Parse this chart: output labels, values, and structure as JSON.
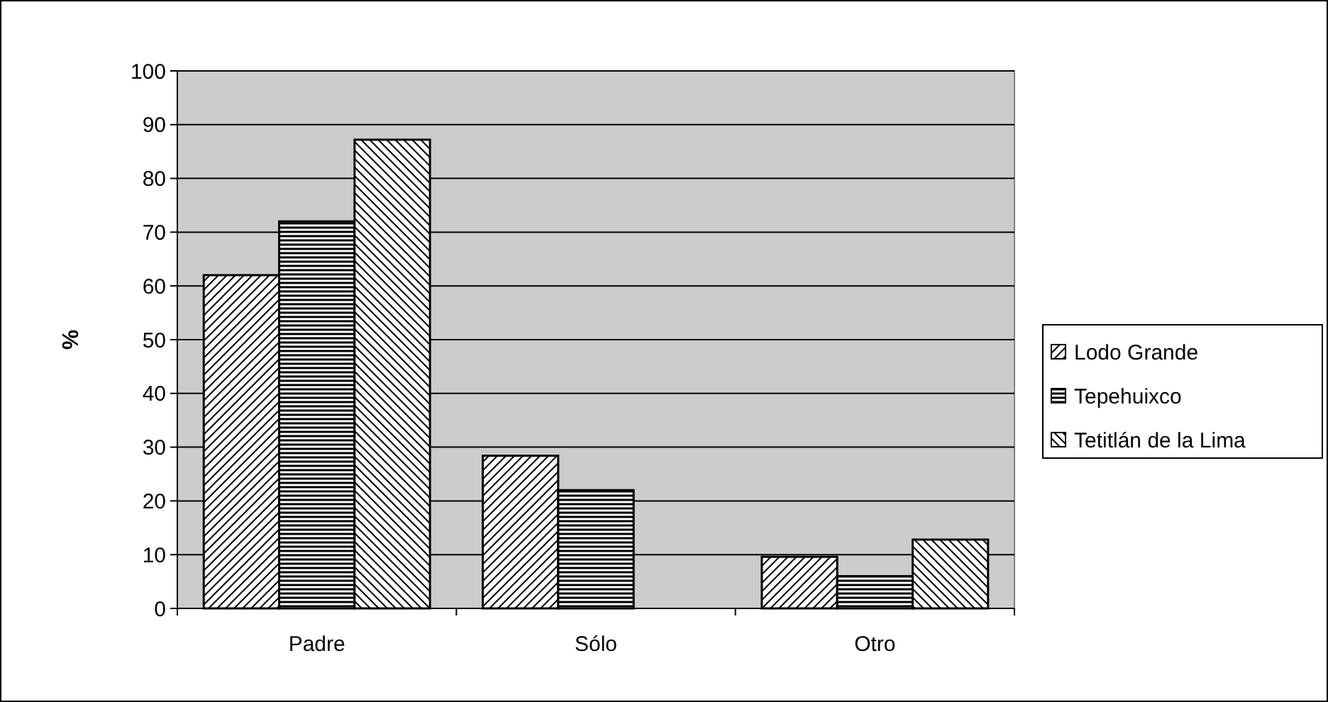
{
  "chart_data": {
    "type": "bar",
    "ylabel": "%",
    "categories": [
      "Padre",
      "Sólo",
      "Otro"
    ],
    "series": [
      {
        "name": "Lodo Grande",
        "color": "#000000",
        "values": [
          62,
          28.4,
          9.6
        ]
      },
      {
        "name": "Tepehuixco",
        "color": "#000000",
        "values": [
          72,
          22,
          6
        ]
      },
      {
        "name": "Tetitlán de la Lima",
        "color": "#000000",
        "values": [
          87.2,
          0,
          12.8
        ]
      }
    ],
    "ylim": [
      0,
      100
    ],
    "yticks": [
      0,
      10,
      20,
      30,
      40,
      50,
      60,
      70,
      80,
      90,
      100
    ],
    "grid": "y",
    "legend": "right"
  }
}
